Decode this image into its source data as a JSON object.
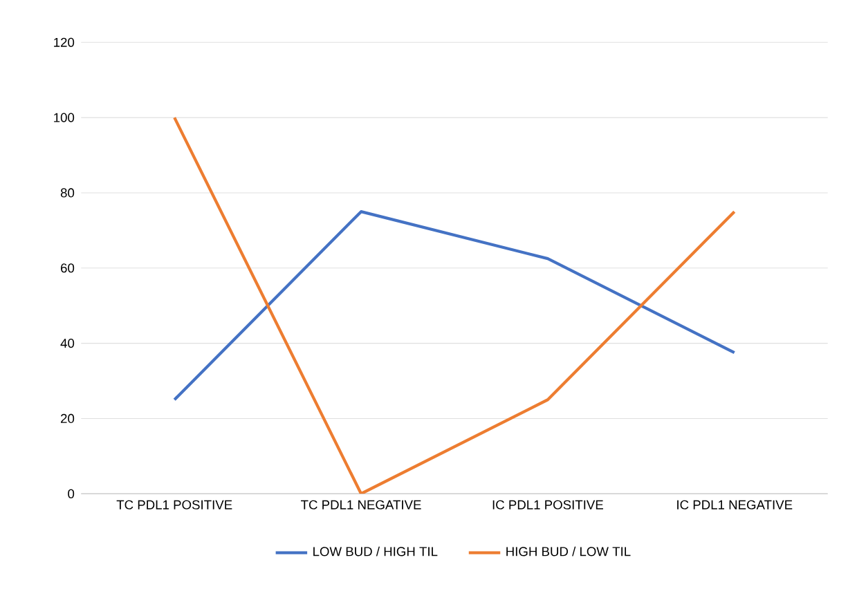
{
  "chart_data": {
    "type": "line",
    "categories": [
      "TC PDL1 POSITIVE",
      "TC PDL1 NEGATIVE",
      "IC PDL1 POSITIVE",
      "IC PDL1 NEGATIVE"
    ],
    "series": [
      {
        "name": "LOW BUD / HIGH TIL",
        "color": "#4472c4",
        "values": [
          25,
          75,
          62.5,
          37.5
        ]
      },
      {
        "name": "HIGH BUD / LOW TIL",
        "color": "#ed7d31",
        "values": [
          100,
          0,
          25,
          75
        ]
      }
    ],
    "ylim": [
      0,
      120
    ],
    "yticks": [
      0,
      20,
      40,
      60,
      80,
      100,
      120
    ],
    "grid": "y",
    "legend": "bottom",
    "marker": "none",
    "line_style": "solid"
  }
}
